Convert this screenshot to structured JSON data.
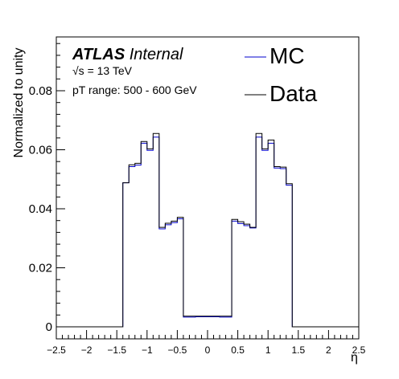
{
  "chart_data": {
    "type": "line",
    "title": "",
    "xlabel": "η",
    "ylabel": "Normalized to unity",
    "xlim": [
      -2.5,
      2.5
    ],
    "ylim": [
      0,
      0.097
    ],
    "grid": false,
    "legend_position": "top-right",
    "x_ticks": [
      "−2.5",
      "−2",
      "−1.5",
      "−1",
      "−0.5",
      "0",
      "0.5",
      "1",
      "1.5",
      "2",
      "2.5"
    ],
    "y_ticks": [
      "0",
      "0.02",
      "0.04",
      "0.06",
      "0.08"
    ],
    "annotations": {
      "atlas_bold": "ATLAS",
      "atlas_status": "Internal",
      "energy": "√s = 13 TeV",
      "range": "pT range: 500 - 600 GeV"
    },
    "bin_edges": [
      -2.5,
      -1.4,
      -1.3,
      -1.2,
      -1.1,
      -1.0,
      -0.9,
      -0.8,
      -0.7,
      -0.6,
      -0.5,
      -0.4,
      -0.2,
      0.0,
      0.2,
      0.4,
      0.5,
      0.6,
      0.7,
      0.8,
      0.9,
      1.0,
      1.1,
      1.2,
      1.3,
      1.4,
      2.5
    ],
    "series": [
      {
        "name": "MC",
        "color": "#0000cc",
        "values": [
          0.0,
          0.0488,
          0.0543,
          0.0548,
          0.0622,
          0.0598,
          0.0643,
          0.0332,
          0.0346,
          0.0353,
          0.0366,
          0.0033,
          0.0034,
          0.0034,
          0.0033,
          0.0358,
          0.035,
          0.0343,
          0.0335,
          0.0643,
          0.0598,
          0.0622,
          0.0538,
          0.0536,
          0.048,
          0.0
        ]
      },
      {
        "name": "Data",
        "color": "#000000",
        "values": [
          0.0,
          0.0488,
          0.0549,
          0.0554,
          0.0628,
          0.0603,
          0.0655,
          0.0337,
          0.0351,
          0.0358,
          0.0371,
          0.0036,
          0.0036,
          0.0036,
          0.0036,
          0.0364,
          0.0356,
          0.0348,
          0.0337,
          0.0655,
          0.0603,
          0.0633,
          0.0543,
          0.0541,
          0.0485,
          0.0
        ]
      }
    ]
  }
}
